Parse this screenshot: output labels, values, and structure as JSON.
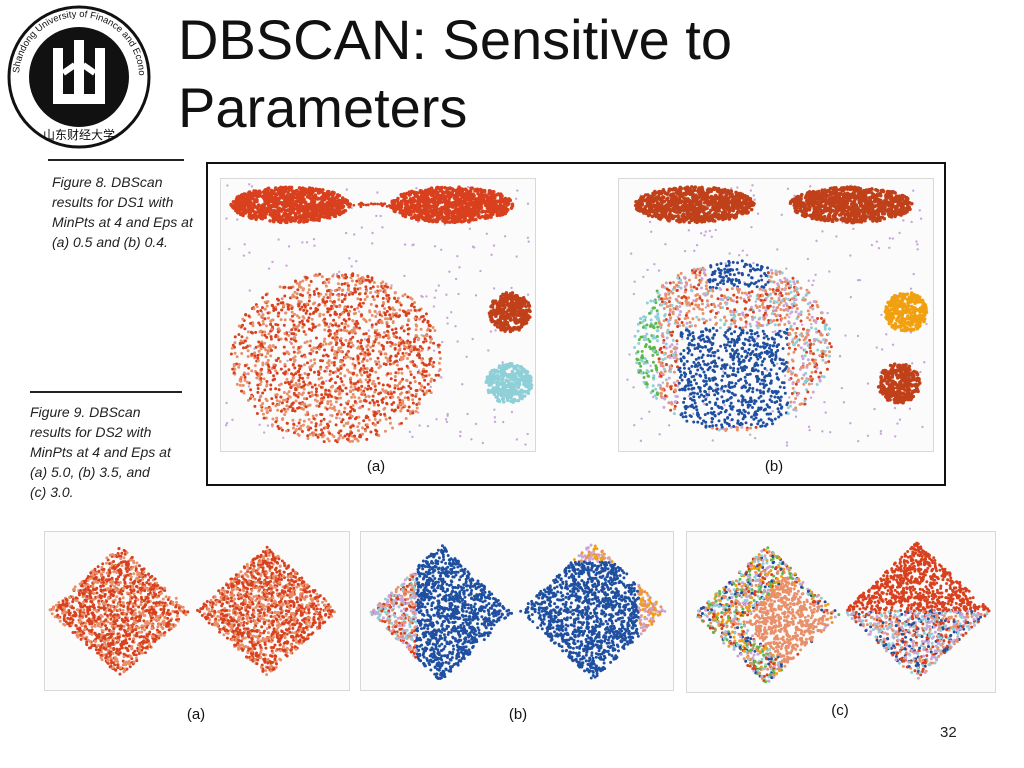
{
  "slide": {
    "title_line1": "DBSCAN: Sensitive to",
    "title_line2": "Parameters",
    "page_number": "32"
  },
  "logo": {
    "ring_text": "Shandong University of Finance and Economics",
    "inner_glyphs": "山东财经大学"
  },
  "figure8": {
    "caption_lines": [
      "Figure 8. DBScan",
      "results for DS1 with",
      "MinPts at 4 and Eps at",
      "(a) 0.5 and (b) 0.4."
    ],
    "label_a": "(a)",
    "label_b": "(b)"
  },
  "figure9": {
    "caption_lines": [
      "Figure 9. DBScan",
      "results for DS2 with",
      "MinPts at 4 and Eps at",
      "(a) 5.0, (b) 3.5, and",
      "(c) 3.0."
    ],
    "label_a": "(a)",
    "label_b": "(b)",
    "label_c": "(c)"
  },
  "colors": {
    "red": "#d8401e",
    "salmon": "#e8906a",
    "navy": "#1f4fa0",
    "lavender": "#c8a6d8",
    "orange": "#f0a010",
    "rust": "#c0401a",
    "teal": "#8fd0d8",
    "green": "#5cb84a"
  }
}
